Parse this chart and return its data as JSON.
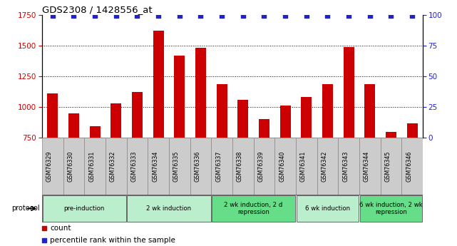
{
  "title": "GDS2308 / 1428556_at",
  "samples": [
    "GSM76329",
    "GSM76330",
    "GSM76331",
    "GSM76332",
    "GSM76333",
    "GSM76334",
    "GSM76335",
    "GSM76336",
    "GSM76337",
    "GSM76338",
    "GSM76339",
    "GSM76340",
    "GSM76341",
    "GSM76342",
    "GSM76343",
    "GSM76344",
    "GSM76345",
    "GSM76346"
  ],
  "counts": [
    1110,
    950,
    845,
    1030,
    1125,
    1620,
    1415,
    1480,
    1185,
    1060,
    900,
    1010,
    1080,
    1185,
    1490,
    1185,
    800,
    870
  ],
  "percentile_vals": [
    99,
    99,
    99,
    99,
    99,
    99,
    99,
    99,
    99,
    99,
    99,
    99,
    99,
    99,
    99,
    99,
    99,
    99
  ],
  "bar_color": "#cc0000",
  "dot_color": "#2222cc",
  "ylim_left": [
    750,
    1750
  ],
  "ylim_right": [
    0,
    100
  ],
  "yticks_left": [
    750,
    1000,
    1250,
    1500,
    1750
  ],
  "yticks_right": [
    0,
    25,
    50,
    75,
    100
  ],
  "grid_values": [
    1000,
    1250,
    1500
  ],
  "protocols": [
    {
      "label": "pre-induction",
      "start": 0,
      "end": 4,
      "color": "#bbeecc"
    },
    {
      "label": "2 wk induction",
      "start": 4,
      "end": 8,
      "color": "#bbeecc"
    },
    {
      "label": "2 wk induction, 2 d\nrepression",
      "start": 8,
      "end": 12,
      "color": "#66dd88"
    },
    {
      "label": "6 wk induction",
      "start": 12,
      "end": 15,
      "color": "#bbeecc"
    },
    {
      "label": "6 wk induction, 2 wk\nrepression",
      "start": 15,
      "end": 18,
      "color": "#66dd88"
    }
  ],
  "protocol_label": "protocol",
  "legend_count_label": "count",
  "legend_pct_label": "percentile rank within the sample",
  "background_color": "#ffffff",
  "tick_label_color_left": "#cc0000",
  "tick_label_color_right": "#2222cc",
  "sample_box_color": "#cccccc",
  "sample_box_edge": "#888888"
}
